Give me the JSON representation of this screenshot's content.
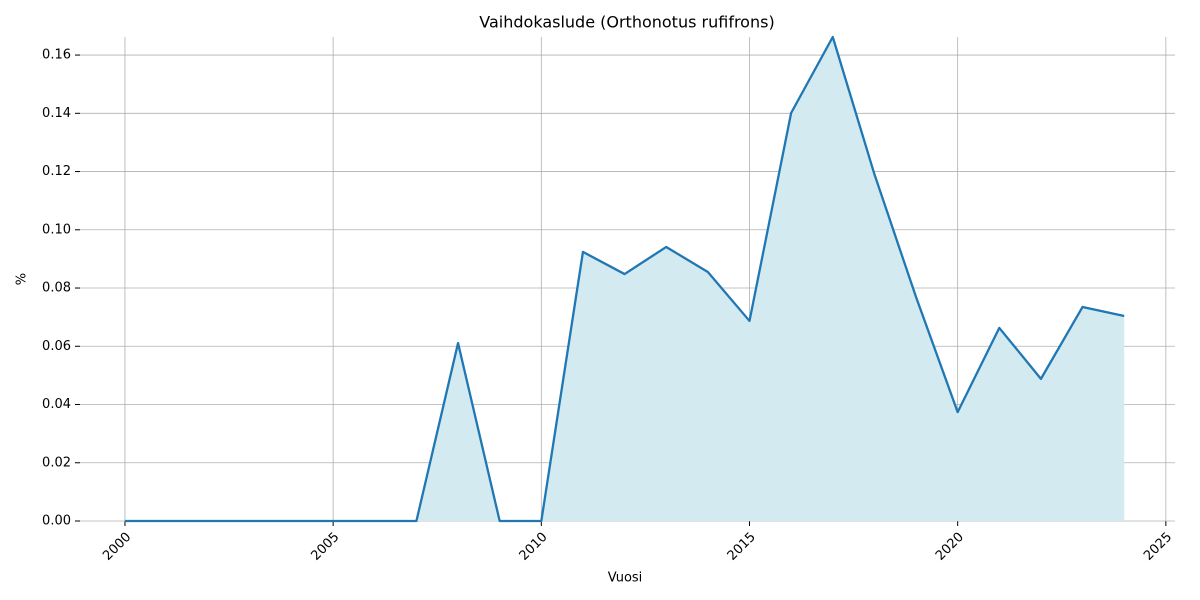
{
  "chart_data": {
    "type": "area_line",
    "title": "Vaihdokaslude (Orthonotus rufifrons)",
    "xlabel": "Vuosi",
    "ylabel": "%",
    "x": [
      2000,
      2001,
      2002,
      2003,
      2004,
      2005,
      2006,
      2007,
      2008,
      2009,
      2010,
      2011,
      2012,
      2013,
      2014,
      2015,
      2016,
      2017,
      2018,
      2019,
      2020,
      2021,
      2022,
      2023,
      2024
    ],
    "series": [
      {
        "name": "%",
        "color": "#1f77b4",
        "area_color": "#d4eaf1",
        "values": [
          0,
          0,
          0,
          0,
          0,
          0,
          0,
          0,
          0.0611,
          0,
          0,
          0.0924,
          0.0848,
          0.0941,
          0.0855,
          0.0687,
          0.1401,
          0.1662,
          0.1191,
          0.0769,
          0.0374,
          0.0663,
          0.0488,
          0.0735,
          0.0704
        ]
      }
    ],
    "xlim": [
      1998.92,
      2025.22
    ],
    "ylim": [
      0,
      0.1662
    ],
    "xticks": [
      2000,
      2005,
      2010,
      2015,
      2020,
      2025
    ],
    "yticks": [
      {
        "value": 0,
        "label": "0.00"
      },
      {
        "value": 0.02,
        "label": "0.02"
      },
      {
        "value": 0.04,
        "label": "0.04"
      },
      {
        "value": 0.06,
        "label": "0.06"
      },
      {
        "value": 0.08,
        "label": "0.08"
      },
      {
        "value": 0.1,
        "label": "0.10"
      },
      {
        "value": 0.12,
        "label": "0.12"
      },
      {
        "value": 0.14,
        "label": "0.14"
      },
      {
        "value": 0.16,
        "label": "0.16"
      }
    ],
    "grid": true
  }
}
